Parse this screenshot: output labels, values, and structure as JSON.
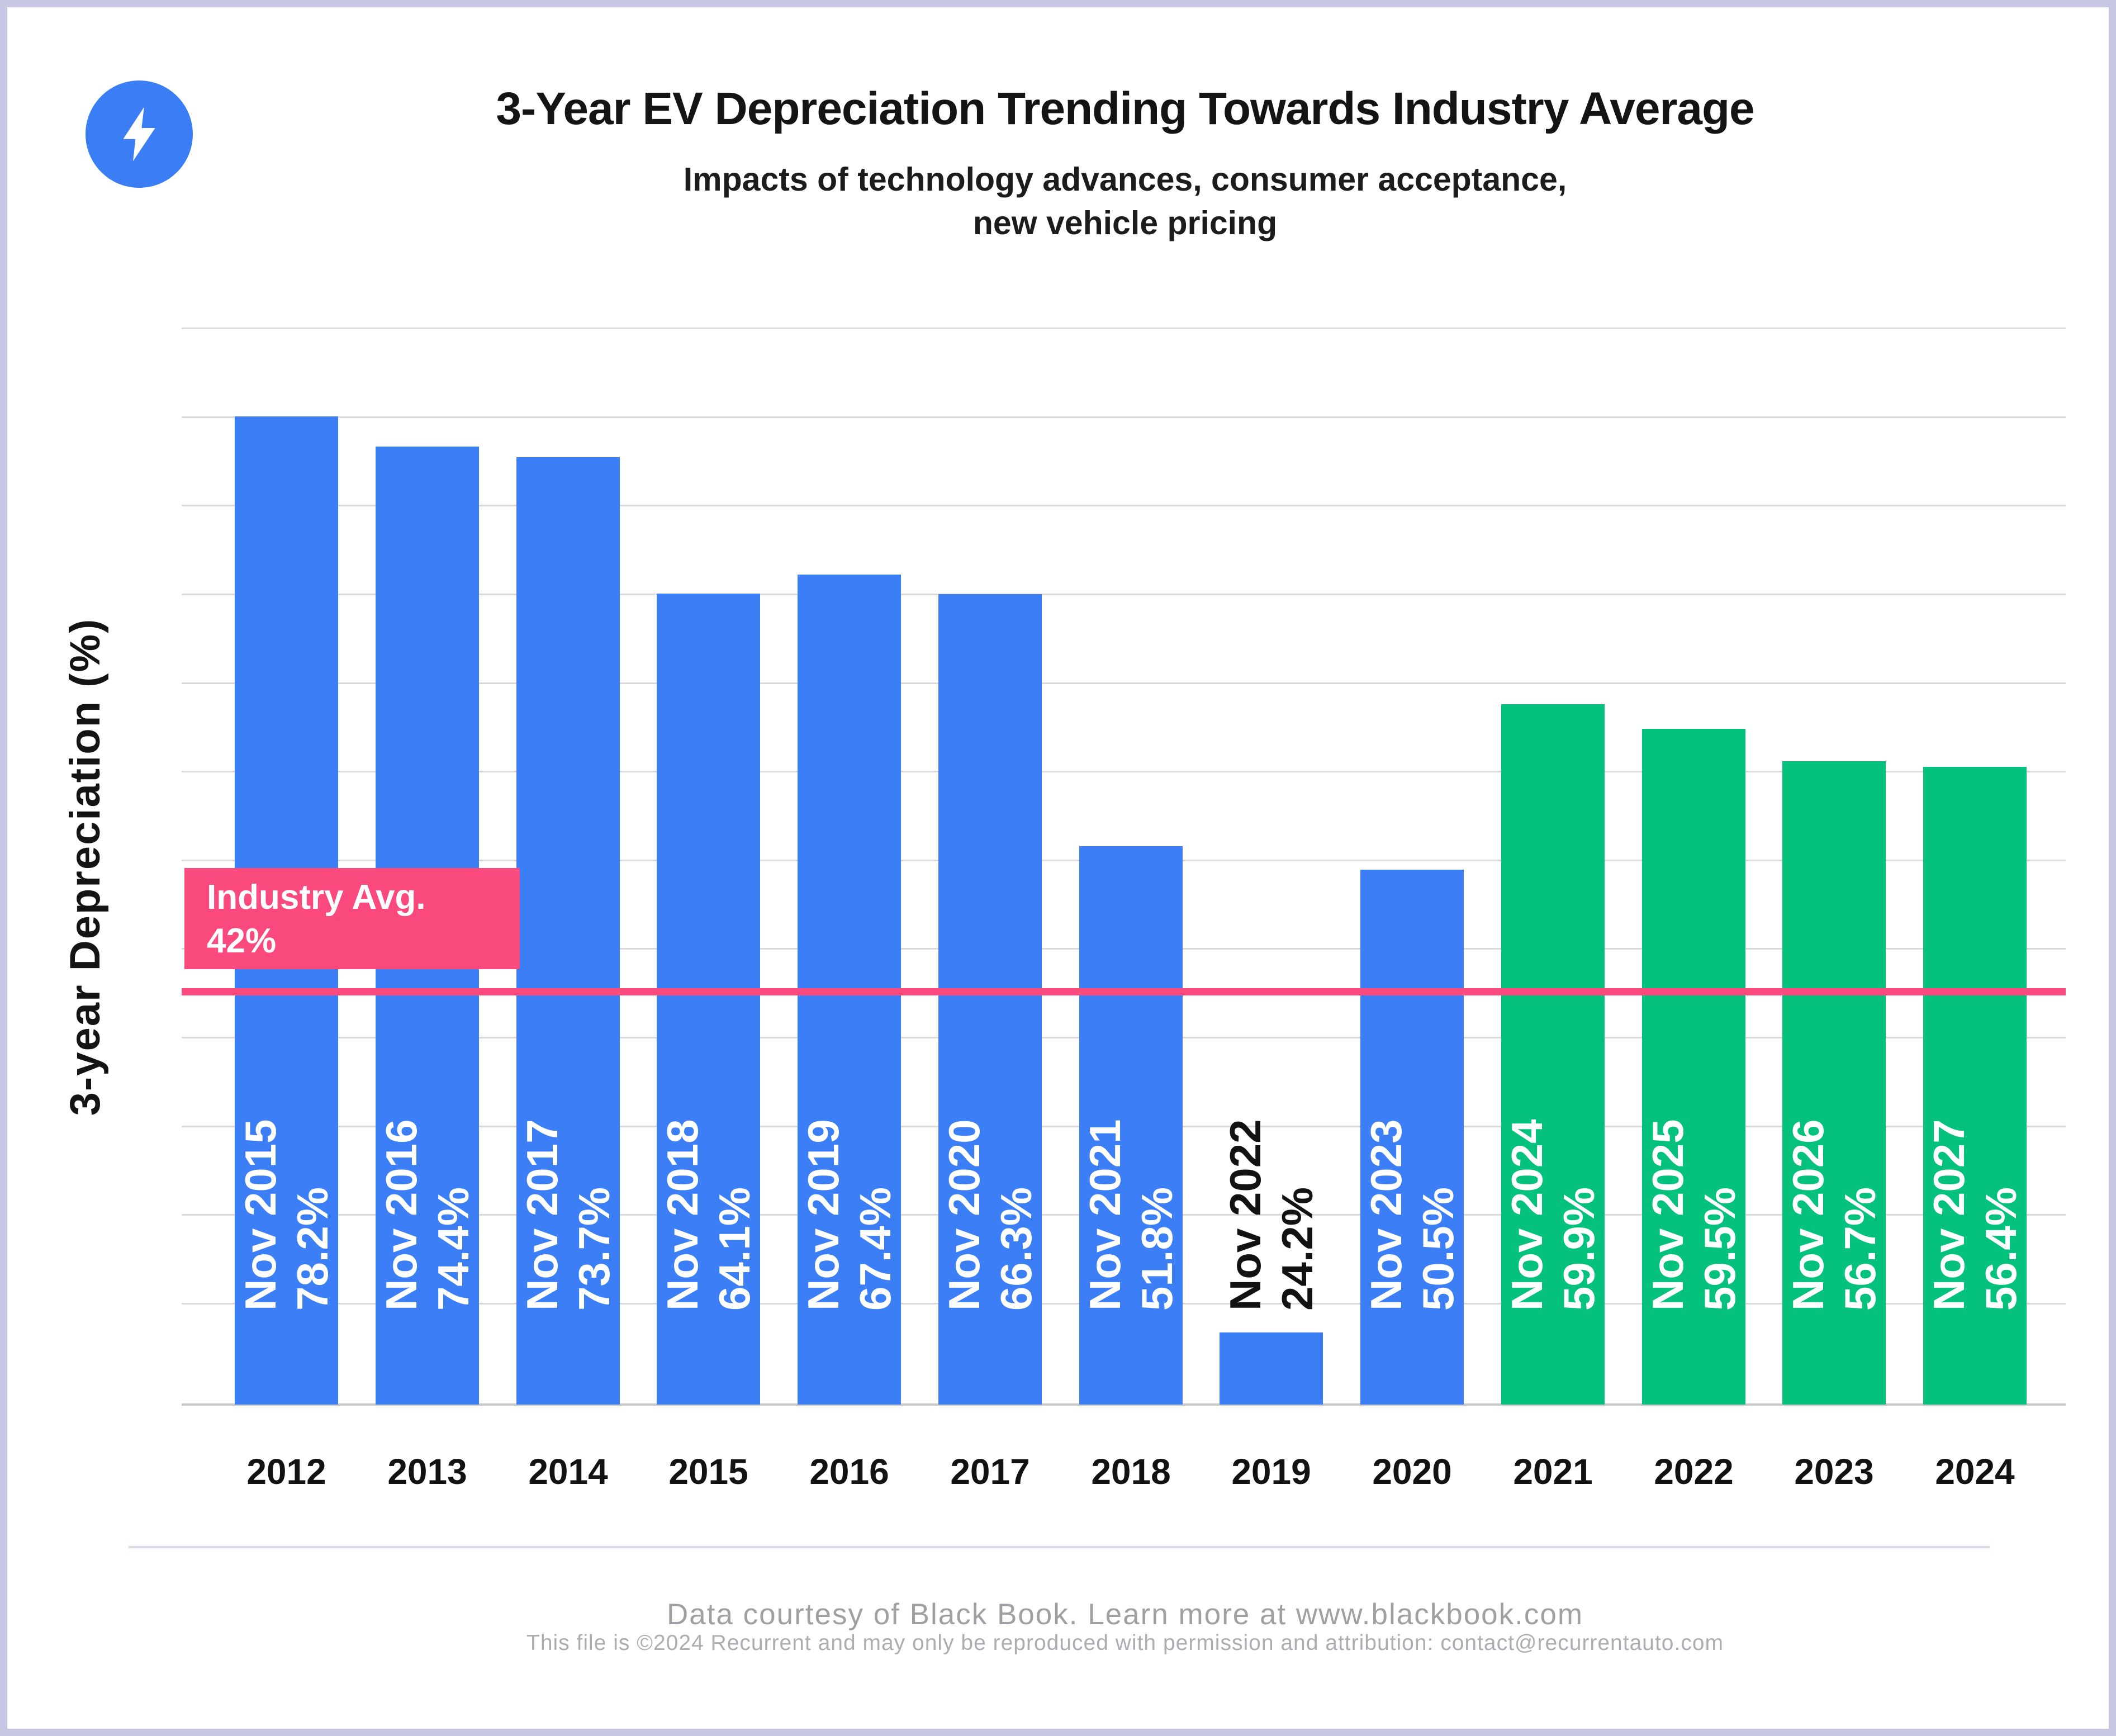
{
  "header": {
    "title": "3-Year EV Depreciation Trending Towards Industry Average",
    "subtitle_line1": "Impacts of technology advances, consumer acceptance,",
    "subtitle_line2": "new vehicle pricing",
    "logo_icon": "lightning-bolt-icon",
    "logo_color": "#3a7df5"
  },
  "chart_data": {
    "type": "bar",
    "title": "3-Year EV Depreciation Trending Towards Industry Average",
    "xlabel": "",
    "ylabel": "3-year Depreciation (%)",
    "grid": true,
    "y_tick_labels_visible": false,
    "categories": [
      "2012",
      "2013",
      "2014",
      "2015",
      "2016",
      "2017",
      "2018",
      "2019",
      "2020",
      "2021",
      "2022",
      "2023",
      "2024"
    ],
    "bars": [
      {
        "category": "2012",
        "label": "Nov 2015",
        "value": 78.2,
        "value_display": "78.2%",
        "group": "ev-actual",
        "label_color": "#ffffff"
      },
      {
        "category": "2013",
        "label": "Nov 2016",
        "value": 74.4,
        "value_display": "74.4%",
        "group": "ev-actual",
        "label_color": "#ffffff"
      },
      {
        "category": "2014",
        "label": "Nov 2017",
        "value": 73.7,
        "value_display": "73.7%",
        "group": "ev-actual",
        "label_color": "#ffffff"
      },
      {
        "category": "2015",
        "label": "Nov 2018",
        "value": 64.1,
        "value_display": "64.1%",
        "group": "ev-actual",
        "label_color": "#ffffff"
      },
      {
        "category": "2016",
        "label": "Nov 2019",
        "value": 67.4,
        "value_display": "67.4%",
        "group": "ev-actual",
        "label_color": "#ffffff"
      },
      {
        "category": "2017",
        "label": "Nov 2020",
        "value": 66.3,
        "value_display": "66.3%",
        "group": "ev-actual",
        "label_color": "#ffffff"
      },
      {
        "category": "2018",
        "label": "Nov 2021",
        "value": 51.8,
        "value_display": "51.8%",
        "group": "ev-actual",
        "label_color": "#ffffff"
      },
      {
        "category": "2019",
        "label": "Nov 2022",
        "value": 24.2,
        "value_display": "24.2%",
        "group": "ev-actual",
        "label_color": "#121212"
      },
      {
        "category": "2020",
        "label": "Nov 2023",
        "value": 50.5,
        "value_display": "50.5%",
        "group": "ev-actual",
        "label_color": "#ffffff"
      },
      {
        "category": "2021",
        "label": "Nov 2024",
        "value": 59.9,
        "value_display": "59.9%",
        "group": "ev-forecast",
        "label_color": "#ffffff"
      },
      {
        "category": "2022",
        "label": "Nov 2025",
        "value": 59.5,
        "value_display": "59.5%",
        "group": "ev-forecast",
        "label_color": "#ffffff"
      },
      {
        "category": "2023",
        "label": "Nov 2026",
        "value": 56.7,
        "value_display": "56.7%",
        "group": "ev-forecast",
        "label_color": "#ffffff"
      },
      {
        "category": "2024",
        "label": "Nov 2027",
        "value": 56.4,
        "value_display": "56.4%",
        "group": "ev-forecast",
        "label_color": "#ffffff"
      }
    ],
    "series_colors": {
      "ev-actual": "#3b7ef6",
      "ev-forecast": "#04c17d"
    },
    "reference_line": {
      "label": "Industry Avg.",
      "value": 42,
      "value_display": "42%",
      "color": "#fa4a7d",
      "text_color": "#ffffff"
    },
    "gridline_color": "#d9d9d9"
  },
  "footer": {
    "line1": "Data courtesy of Black Book. Learn more at www.blackbook.com",
    "line2": "This file is ©2024 Recurrent and may only be reproduced with permission and attribution: contact@recurrentauto.com"
  }
}
